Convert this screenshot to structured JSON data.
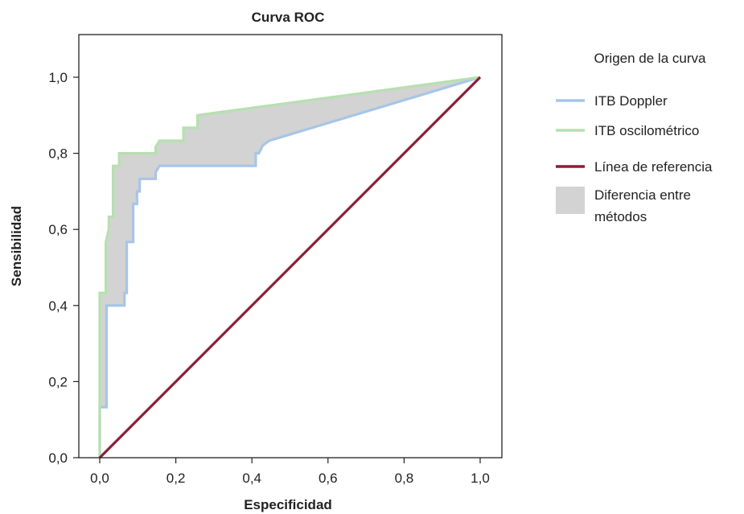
{
  "chart_data": {
    "type": "line",
    "title": "Curva ROC",
    "xlabel": "Especificidad",
    "ylabel": "Sensibilidad",
    "xlim": [
      0,
      1.0
    ],
    "ylim": [
      0,
      1.0
    ],
    "xticks": [
      "0,0",
      "0,2",
      "0,4",
      "0,6",
      "0,8",
      "1,0"
    ],
    "yticks": [
      "0,0",
      "0,2",
      "0,4",
      "0,6",
      "0,8",
      "1,0"
    ],
    "grid": false,
    "legend": {
      "title": "Origen de la curva",
      "placement": "right",
      "items": [
        {
          "label": "ITB Doppler",
          "color": "#a7c5e7",
          "kind": "line"
        },
        {
          "label": "ITB oscilométrico",
          "color": "#b6e0b0",
          "kind": "line"
        },
        {
          "label": "Línea de referencia",
          "color": "#8b1e35",
          "kind": "line"
        },
        {
          "label": "Diferencia entre métodos",
          "color": "#d3d3d3",
          "kind": "area"
        }
      ]
    },
    "series": [
      {
        "name": "ITB Doppler",
        "color": "#a7c5e7",
        "points": [
          [
            0.0,
            0.0
          ],
          [
            0.0,
            0.133
          ],
          [
            0.018,
            0.133
          ],
          [
            0.018,
            0.4
          ],
          [
            0.065,
            0.4
          ],
          [
            0.065,
            0.433
          ],
          [
            0.071,
            0.433
          ],
          [
            0.071,
            0.567
          ],
          [
            0.088,
            0.567
          ],
          [
            0.088,
            0.667
          ],
          [
            0.098,
            0.667
          ],
          [
            0.098,
            0.7
          ],
          [
            0.105,
            0.7
          ],
          [
            0.105,
            0.733
          ],
          [
            0.147,
            0.733
          ],
          [
            0.147,
            0.75
          ],
          [
            0.157,
            0.767
          ],
          [
            0.41,
            0.767
          ],
          [
            0.41,
            0.8
          ],
          [
            0.418,
            0.8
          ],
          [
            0.428,
            0.82
          ],
          [
            0.445,
            0.833
          ],
          [
            1.0,
            1.0
          ]
        ]
      },
      {
        "name": "ITB oscilométrico",
        "color": "#b6e0b0",
        "points": [
          [
            0.0,
            0.0
          ],
          [
            0.0,
            0.433
          ],
          [
            0.016,
            0.433
          ],
          [
            0.016,
            0.567
          ],
          [
            0.024,
            0.6
          ],
          [
            0.024,
            0.633
          ],
          [
            0.035,
            0.633
          ],
          [
            0.035,
            0.767
          ],
          [
            0.051,
            0.767
          ],
          [
            0.051,
            0.8
          ],
          [
            0.147,
            0.8
          ],
          [
            0.147,
            0.817
          ],
          [
            0.157,
            0.833
          ],
          [
            0.22,
            0.833
          ],
          [
            0.22,
            0.867
          ],
          [
            0.257,
            0.867
          ],
          [
            0.257,
            0.9
          ],
          [
            1.0,
            1.0
          ]
        ]
      },
      {
        "name": "Línea de referencia",
        "color": "#8b1e35",
        "points": [
          [
            0.0,
            0.0
          ],
          [
            1.0,
            1.0
          ]
        ]
      }
    ]
  }
}
